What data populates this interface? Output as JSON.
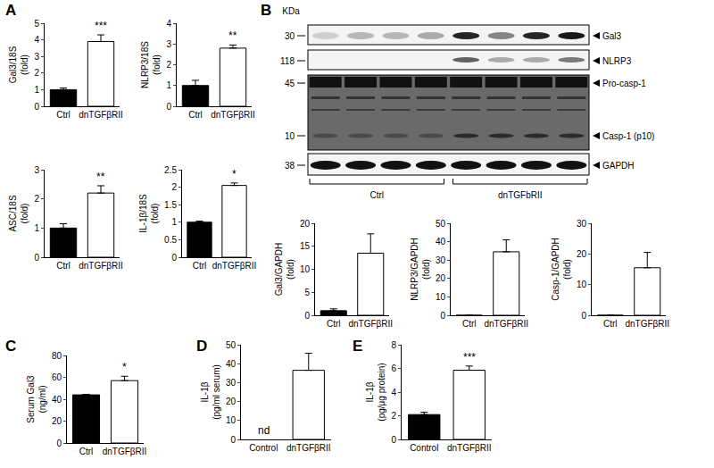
{
  "panel_labels": [
    "A",
    "B",
    "C",
    "D",
    "E"
  ],
  "blot": {
    "mw_label": "KDa",
    "rows": [
      {
        "mw": "30",
        "label": "Gal3"
      },
      {
        "mw": "118",
        "label": "NLRP3"
      },
      {
        "mw": "45",
        "label": "Pro-casp-1"
      },
      {
        "mw": "10",
        "label": "Casp-1 (p10)"
      },
      {
        "mw": "38",
        "label": "GAPDH"
      }
    ],
    "groups": [
      "Ctrl",
      "dnTGFbRII"
    ]
  },
  "chart_data": [
    {
      "type": "bar",
      "ylabel": [
        "Gal3/18S",
        "(fold)"
      ],
      "categories": [
        "Ctrl",
        "dnTGFβRII"
      ],
      "values": [
        1.0,
        3.9
      ],
      "errors": [
        0.1,
        0.4
      ],
      "colors": [
        "#000000",
        "#ffffff"
      ],
      "ylim": [
        0,
        5
      ],
      "yticks": [
        0,
        1,
        2,
        3,
        4,
        5
      ],
      "annotations": [
        {
          "text": "***",
          "category": "dnTGFβRII"
        }
      ]
    },
    {
      "type": "bar",
      "ylabel": [
        "NLRP3/18S",
        "(fold)"
      ],
      "categories": [
        "Ctrl",
        "dnTGFβRII"
      ],
      "values": [
        1.0,
        2.8
      ],
      "errors": [
        0.25,
        0.15
      ],
      "colors": [
        "#000000",
        "#ffffff"
      ],
      "ylim": [
        0,
        4
      ],
      "yticks": [
        0,
        1,
        2,
        3,
        4
      ],
      "annotations": [
        {
          "text": "**",
          "category": "dnTGFβRII"
        }
      ]
    },
    {
      "type": "bar",
      "ylabel": [
        "ASC/18S",
        "(fold)"
      ],
      "categories": [
        "Ctrl",
        "dnTGFβRII"
      ],
      "values": [
        1.0,
        2.2
      ],
      "errors": [
        0.15,
        0.25
      ],
      "colors": [
        "#000000",
        "#ffffff"
      ],
      "ylim": [
        0,
        3
      ],
      "yticks": [
        0,
        1,
        2,
        3
      ],
      "annotations": [
        {
          "text": "**",
          "category": "dnTGFβRII"
        }
      ]
    },
    {
      "type": "bar",
      "ylabel": [
        "IL-1β/18S",
        "(fold)"
      ],
      "categories": [
        "Ctrl",
        "dnTGFβRII"
      ],
      "values": [
        1.0,
        2.05
      ],
      "errors": [
        0.03,
        0.07
      ],
      "colors": [
        "#000000",
        "#ffffff"
      ],
      "ylim": [
        0,
        2.5
      ],
      "yticks": [
        0,
        0.5,
        1,
        1.5,
        2,
        2.5
      ],
      "annotations": [
        {
          "text": "*",
          "category": "dnTGFβRII"
        }
      ]
    },
    {
      "type": "bar",
      "ylabel": [
        "Gal3/GAPDH",
        "(fold)"
      ],
      "categories": [
        "Ctrl",
        "dnTGFβRII"
      ],
      "values": [
        1.0,
        13.5
      ],
      "errors": [
        0.4,
        4.2
      ],
      "colors": [
        "#000000",
        "#ffffff"
      ],
      "ylim": [
        0,
        20
      ],
      "yticks": [
        0,
        5,
        10,
        15,
        20
      ],
      "annotations": []
    },
    {
      "type": "bar",
      "ylabel": [
        "NLRP3/GAPDH",
        "(fold)"
      ],
      "categories": [
        "Ctrl",
        "dnTGFβRII"
      ],
      "values": [
        0,
        34.5
      ],
      "errors": [
        null,
        6.5
      ],
      "colors": [
        "#000000",
        "#ffffff"
      ],
      "ylim": [
        0,
        50
      ],
      "yticks": [
        0,
        10,
        20,
        30,
        40,
        50
      ],
      "annotations": []
    },
    {
      "type": "bar",
      "ylabel": [
        "Casp-1/GAPDH",
        "(fold)"
      ],
      "categories": [
        "Ctrl",
        "dnTGFβRII"
      ],
      "values": [
        0,
        15.5
      ],
      "errors": [
        null,
        5
      ],
      "colors": [
        "#000000",
        "#ffffff"
      ],
      "ylim": [
        0,
        30
      ],
      "yticks": [
        0,
        10,
        20,
        30
      ],
      "annotations": []
    },
    {
      "type": "bar",
      "ylabel": [
        "Serum Gal3",
        "(ng/ml)"
      ],
      "categories": [
        "Ctrl",
        "dnTGFβRII"
      ],
      "values": [
        44,
        57
      ],
      "errors": [
        0.5,
        4
      ],
      "colors": [
        "#000000",
        "#ffffff"
      ],
      "ylim": [
        0,
        80
      ],
      "yticks": [
        0,
        20,
        40,
        60,
        80
      ],
      "annotations": [
        {
          "text": "*",
          "category": "dnTGFβRII"
        }
      ]
    },
    {
      "type": "bar",
      "ylabel": [
        "IL-1β",
        "(pg/ml serum)"
      ],
      "categories": [
        "Control",
        "dnTGFβRII"
      ],
      "values": [
        null,
        36.5
      ],
      "errors": [
        null,
        9
      ],
      "colors": [
        "#000000",
        "#ffffff"
      ],
      "ylim": [
        0,
        50
      ],
      "yticks": [
        0,
        10,
        20,
        30,
        40,
        50
      ],
      "annotations": [
        {
          "text": "nd",
          "category": "Control"
        }
      ]
    },
    {
      "type": "bar",
      "ylabel": [
        "IL-1β",
        "(pg/μg protein)"
      ],
      "categories": [
        "Control",
        "dnTGFβRII"
      ],
      "values": [
        2.1,
        5.85
      ],
      "errors": [
        0.2,
        0.35
      ],
      "colors": [
        "#000000",
        "#ffffff"
      ],
      "ylim": [
        0,
        8
      ],
      "yticks": [
        0,
        2,
        4,
        6,
        8
      ],
      "annotations": [
        {
          "text": "***",
          "category": "dnTGFβRII"
        }
      ]
    }
  ]
}
